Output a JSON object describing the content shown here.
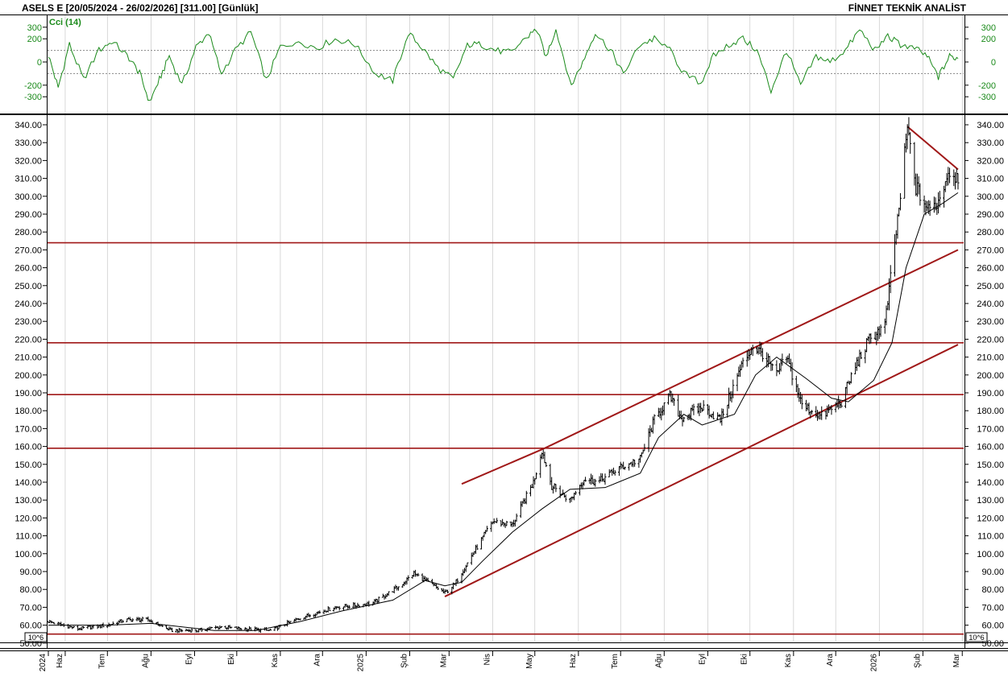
{
  "header": {
    "title": "ASELS E  [20/05/2024 - 26/02/2026]  [311.00]  [Günlük]",
    "brand": "FİNNET TEKNİK ANALİST"
  },
  "cci_panel": {
    "label": "Cci (14)",
    "ticks_left": [
      "300",
      "200",
      "0",
      "-200",
      "-300"
    ],
    "ticks_right": [
      "300",
      "200",
      "0",
      "-200",
      "-300"
    ]
  },
  "volume_marker": "10^6",
  "colors": {
    "cci_line": "#1a8a1a",
    "trendline": "#a01818",
    "price_bar": "#000000",
    "moving_average": "#000000",
    "grid": "#c8c8c8"
  },
  "chart_data": {
    "type": "bar",
    "title": "ASELS E  [20/05/2024 - 26/02/2026]  [311.00]  [Günlük]",
    "x_tick_labels": [
      "2024",
      "Haz",
      "Tem",
      "Ağu",
      "Eyl",
      "Eki",
      "Kas",
      "Ara",
      "2025",
      "Şub",
      "Mar",
      "Nis",
      "May",
      "Haz",
      "Tem",
      "Ağu",
      "Eyl",
      "Eki",
      "Kas",
      "Ara",
      "2026",
      "Şub",
      "Mar"
    ],
    "y_tick_labels": [
      "340.00",
      "330.00",
      "320.00",
      "310.00",
      "300.00",
      "290.00",
      "280.00",
      "270.00",
      "260.00",
      "250.00",
      "240.00",
      "230.00",
      "220.00",
      "210.00",
      "200.00",
      "190.00",
      "180.00",
      "170.00",
      "160.00",
      "150.00",
      "140.00",
      "130.00",
      "120.00",
      "110.00",
      "100.00",
      "90.00",
      "80.00",
      "70.00",
      "60.00",
      "50.00"
    ],
    "ylim": [
      50,
      342
    ],
    "last_close": 311.0,
    "price_path_x": [
      "2024-05-20",
      "2024-06-10",
      "2024-07-01",
      "2024-07-15",
      "2024-07-30",
      "2024-08-15",
      "2024-09-02",
      "2024-09-20",
      "2024-10-05",
      "2024-10-25",
      "2024-11-15",
      "2024-12-10",
      "2025-01-05",
      "2025-01-25",
      "2025-02-04",
      "2025-02-14",
      "2025-02-26",
      "2025-03-05",
      "2025-03-18",
      "2025-04-01",
      "2025-04-15",
      "2025-04-30",
      "2025-05-06",
      "2025-05-13",
      "2025-05-26",
      "2025-06-05",
      "2025-06-15",
      "2025-06-30",
      "2025-07-15",
      "2025-07-25",
      "2025-08-05",
      "2025-08-13",
      "2025-08-28",
      "2025-09-10",
      "2025-09-25",
      "2025-10-03",
      "2025-10-10",
      "2025-10-20",
      "2025-10-27",
      "2025-11-07",
      "2025-11-21",
      "2025-12-05",
      "2025-12-15",
      "2025-12-25",
      "2026-01-05",
      "2026-01-10",
      "2026-01-16",
      "2026-01-21",
      "2026-01-27",
      "2026-02-05",
      "2026-02-12",
      "2026-02-19",
      "2026-02-26"
    ],
    "price_path_y": [
      62,
      58,
      60,
      63,
      63,
      57,
      57,
      59,
      58,
      57,
      64,
      70,
      72,
      82,
      89,
      84,
      78,
      83,
      100,
      118,
      116,
      140,
      158,
      138,
      130,
      142,
      140,
      148,
      153,
      175,
      188,
      176,
      182,
      175,
      205,
      216,
      212,
      200,
      210,
      183,
      177,
      185,
      205,
      220,
      228,
      260,
      300,
      338,
      305,
      292,
      297,
      314,
      311
    ],
    "indicator_cci": {
      "name": "Cci (14)",
      "ylim": [
        -350,
        330
      ],
      "reference_levels": [
        100,
        -100
      ],
      "x": [
        "2024-05-20",
        "2024-05-27",
        "2024-06-04",
        "2024-06-14",
        "2024-06-25",
        "2024-07-04",
        "2024-07-15",
        "2024-07-24",
        "2024-07-31",
        "2024-08-07",
        "2024-08-14",
        "2024-08-23",
        "2024-09-02",
        "2024-09-11",
        "2024-09-20",
        "2024-09-30",
        "2024-10-11",
        "2024-10-22",
        "2024-11-01",
        "2024-11-14",
        "2024-11-27",
        "2024-12-10",
        "2024-12-24",
        "2025-01-08",
        "2025-01-20",
        "2025-01-31",
        "2025-02-10",
        "2025-02-21",
        "2025-03-04",
        "2025-03-14",
        "2025-03-24",
        "2025-04-03",
        "2025-04-14",
        "2025-04-24",
        "2025-05-02",
        "2025-05-09",
        "2025-05-16",
        "2025-05-27",
        "2025-06-04",
        "2025-06-13",
        "2025-06-24",
        "2025-07-03",
        "2025-07-15",
        "2025-07-25",
        "2025-08-05",
        "2025-08-15",
        "2025-08-27",
        "2025-09-05",
        "2025-09-16",
        "2025-09-26",
        "2025-10-06",
        "2025-10-16",
        "2025-10-27",
        "2025-11-06",
        "2025-11-17",
        "2025-11-27",
        "2025-12-08",
        "2025-12-18",
        "2025-12-29",
        "2026-01-07",
        "2026-01-16",
        "2026-01-26",
        "2026-02-04",
        "2026-02-12",
        "2026-02-20",
        "2026-02-26"
      ],
      "y": [
        60,
        -220,
        150,
        -150,
        100,
        180,
        60,
        -100,
        -350,
        -150,
        50,
        -200,
        130,
        250,
        -100,
        100,
        260,
        -160,
        130,
        180,
        120,
        200,
        150,
        -100,
        -160,
        250,
        120,
        -50,
        -150,
        150,
        150,
        100,
        80,
        200,
        280,
        50,
        280,
        -200,
        0,
        250,
        100,
        -100,
        150,
        200,
        100,
        -100,
        -180,
        50,
        150,
        200,
        100,
        -250,
        100,
        -200,
        50,
        0,
        100,
        280,
        100,
        220,
        150,
        120,
        50,
        -130,
        50,
        30
      ]
    },
    "moving_average": {
      "x": [
        "2024-05-20",
        "2024-07-01",
        "2024-08-01",
        "2024-09-15",
        "2024-10-15",
        "2024-11-15",
        "2024-12-15",
        "2025-01-20",
        "2025-02-12",
        "2025-02-26",
        "2025-03-10",
        "2025-03-25",
        "2025-04-15",
        "2025-05-06",
        "2025-05-26",
        "2025-06-20",
        "2025-07-15",
        "2025-07-28",
        "2025-08-15",
        "2025-08-28",
        "2025-09-20",
        "2025-10-05",
        "2025-10-20",
        "2025-11-10",
        "2025-11-28",
        "2025-12-10",
        "2025-12-28",
        "2026-01-10",
        "2026-01-20",
        "2026-02-02",
        "2026-02-15",
        "2026-02-26"
      ],
      "y": [
        60,
        60,
        61,
        57,
        57,
        62,
        68,
        74,
        85,
        82,
        84,
        96,
        112,
        125,
        136,
        137,
        145,
        165,
        178,
        172,
        178,
        200,
        210,
        198,
        187,
        185,
        197,
        218,
        260,
        290,
        296,
        302
      ]
    },
    "horizontal_levels": [
      274,
      218,
      189,
      159,
      55
    ],
    "trendlines": [
      {
        "x": [
          "2025-03-10",
          "2025-05-08"
        ],
        "y": [
          139,
          159
        ]
      },
      {
        "x": [
          "2025-05-08",
          "2026-02-26"
        ],
        "y": [
          159,
          270
        ]
      },
      {
        "x": [
          "2025-02-26",
          "2026-02-26"
        ],
        "y": [
          76,
          217
        ]
      },
      {
        "x": [
          "2026-01-21",
          "2026-02-26"
        ],
        "y": [
          339,
          315
        ]
      }
    ]
  }
}
